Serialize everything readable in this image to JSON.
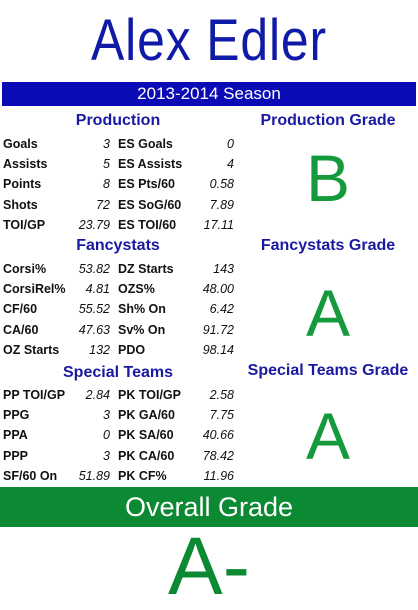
{
  "player_name": "Alex Edler",
  "season": "2013-2014 Season",
  "production": {
    "title": "Production",
    "rows": [
      {
        "l1": "Goals",
        "v1": "3",
        "l2": "ES Goals",
        "v2": "0"
      },
      {
        "l1": "Assists",
        "v1": "5",
        "l2": "ES Assists",
        "v2": "4"
      },
      {
        "l1": "Points",
        "v1": "8",
        "l2": "ES Pts/60",
        "v2": "0.58"
      },
      {
        "l1": "Shots",
        "v1": "72",
        "l2": "ES SoG/60",
        "v2": "7.89"
      },
      {
        "l1": "TOI/GP",
        "v1": "23.79",
        "l2": "ES TOI/60",
        "v2": "17.11"
      }
    ]
  },
  "fancystats": {
    "title": "Fancystats",
    "rows": [
      {
        "l1": "Corsi%",
        "v1": "53.82",
        "l2": "DZ Starts",
        "v2": "143"
      },
      {
        "l1": "CorsiRel%",
        "v1": "4.81",
        "l2": "OZS%",
        "v2": "48.00"
      },
      {
        "l1": "CF/60",
        "v1": "55.52",
        "l2": "Sh% On",
        "v2": "6.42"
      },
      {
        "l1": "CA/60",
        "v1": "47.63",
        "l2": "Sv% On",
        "v2": "91.72"
      },
      {
        "l1": "OZ Starts",
        "v1": "132",
        "l2": "PDO",
        "v2": "98.14"
      }
    ]
  },
  "special_teams": {
    "title": "Special Teams",
    "rows": [
      {
        "l1": "PP TOI/GP",
        "v1": "2.84",
        "l2": "PK TOI/GP",
        "v2": "2.58"
      },
      {
        "l1": "PPG",
        "v1": "3",
        "l2": "PK GA/60",
        "v2": "7.75"
      },
      {
        "l1": "PPA",
        "v1": "0",
        "l2": "PK SA/60",
        "v2": "40.66"
      },
      {
        "l1": "PPP",
        "v1": "3",
        "l2": "PK CA/60",
        "v2": "78.42"
      },
      {
        "l1": "SF/60 On",
        "v1": "51.89",
        "l2": "PK CF%",
        "v2": "11.96"
      }
    ]
  },
  "grades": {
    "production_title": "Production Grade",
    "production_grade": "B",
    "fancystats_title": "Fancystats Grade",
    "fancystats_grade": "A",
    "special_teams_title": "Special Teams Grade",
    "special_teams_grade": "A"
  },
  "overall": {
    "title": "Overall Grade",
    "grade": "A-"
  },
  "colors": {
    "title_blue": "#0f1aa6",
    "season_bar": "#0b0bb5",
    "grade_green": "#149a3c",
    "overall_bar": "#0c8a33"
  }
}
